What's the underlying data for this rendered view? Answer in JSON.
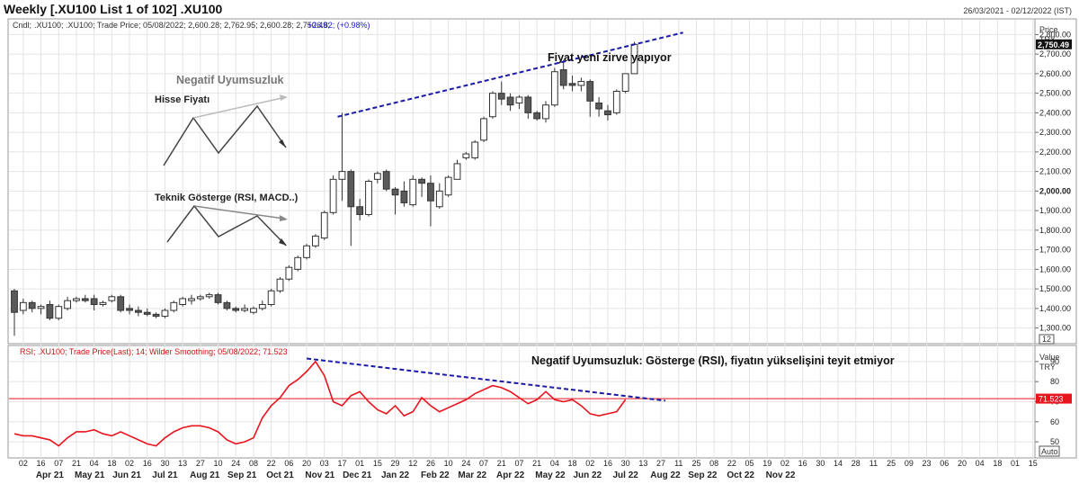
{
  "header": {
    "title": "Weekly [.XU100 List 1 of 102] .XU100",
    "date_range": "26/03/2021 - 02/12/2022 (IST)"
  },
  "price_panel": {
    "legend": ".XU100; .XU100; Trade Price; 05/08/2022; 2,600.28; 2,762.95; 2,600.28; 2,750.49;",
    "legend_change": "+26.82; (+0.98%)",
    "legend_prefix": "Cndl;",
    "axis_title": "Price",
    "axis_unit": "TRY",
    "last_value": "2,750.49",
    "bottom_badge": "12",
    "annotation": "Fiyat yeni zirve yapıyor"
  },
  "rsi_panel": {
    "legend": "RSI; .XU100; Trade Price(Last); 14; Wilder Smoothing; 05/08/2022; 71.523",
    "axis_title": "Value",
    "axis_unit": "TRY",
    "last_value": "71.523",
    "bottom_badge": "Auto",
    "annotation": "Negatif Uyumsuzluk: Gösterge (RSI), fiyatın yükselişini teyit etmiyor"
  },
  "inset": {
    "title": "Negatif Uyumsuzluk",
    "price_label": "Hisse Fiyatı",
    "indicator_label": "Teknik Gösterge (RSI, MACD..)"
  },
  "colors": {
    "bull": "#ffffff",
    "bear": "#5a5a5a",
    "rsi": "#e8141e",
    "trend": "#1a1aa8",
    "grid": "#e4e4e4",
    "refline": "#e8141e"
  },
  "chart_data": [
    {
      "type": "candlestick",
      "title": "Weekly [.XU100 List 1 of 102] .XU100",
      "ylabel": "Price TRY",
      "ylim": [
        1220,
        2880
      ],
      "yticks": [
        "1,300.00",
        "1,400.00",
        "1,500.00",
        "1,600.00",
        "1,700.00",
        "1,800.00",
        "1,900.00",
        "2,000.00",
        "2,100.00",
        "2,200.00",
        "2,300.00",
        "2,400.00",
        "2,500.00",
        "2,600.00",
        "2,700.00",
        "2,800.00"
      ],
      "week_labels": [
        "02",
        "16",
        "07",
        "21",
        "04",
        "18",
        "02",
        "16",
        "30",
        "13",
        "27",
        "10",
        "24",
        "08",
        "22",
        "06",
        "20",
        "03",
        "17",
        "01",
        "15",
        "29",
        "12",
        "26",
        "10",
        "24",
        "07",
        "21",
        "07",
        "21",
        "04",
        "18",
        "02",
        "16",
        "30",
        "13",
        "27",
        "11",
        "25",
        "08",
        "22",
        "05",
        "19",
        "02",
        "16",
        "30",
        "14",
        "28",
        "11",
        "25",
        "09",
        "23",
        "06",
        "20",
        "04",
        "18",
        "01",
        "15"
      ],
      "week_label_index": [
        1,
        3,
        5,
        7,
        9,
        11,
        13,
        15,
        17,
        19,
        21,
        23,
        25,
        27,
        29,
        31,
        33,
        35,
        37,
        39,
        41,
        43,
        45,
        47,
        49,
        51,
        53,
        55,
        57,
        59,
        61,
        63,
        65,
        67,
        69,
        71,
        73,
        75,
        77,
        79,
        81,
        83,
        85,
        87,
        89,
        91,
        93,
        95,
        97,
        99,
        101,
        103,
        105,
        107,
        109,
        111,
        113,
        115
      ],
      "month_labels": [
        "Apr 21",
        "May 21",
        "Jun 21",
        "Jul 21",
        "Aug 21",
        "Sep 21",
        "Oct 21",
        "Nov 21",
        "Dec 21",
        "Jan 22",
        "Feb 22",
        "Mar 22",
        "Apr 22",
        "May 22",
        "Jun 22",
        "Jul 22",
        "Aug 22",
        "Sep 22",
        "Oct 22",
        "Nov 22"
      ],
      "month_label_index": [
        4,
        8.5,
        12.7,
        17,
        21.5,
        25.7,
        30,
        34.5,
        38.7,
        43,
        47.5,
        51.7,
        56,
        60.5,
        64.7,
        69,
        73.5,
        77.7,
        82,
        86.5
      ],
      "candles": [
        {
          "o": 1490,
          "h": 1500,
          "l": 1260,
          "c": 1380
        },
        {
          "o": 1390,
          "h": 1450,
          "l": 1370,
          "c": 1430
        },
        {
          "o": 1430,
          "h": 1440,
          "l": 1380,
          "c": 1400
        },
        {
          "o": 1400,
          "h": 1420,
          "l": 1370,
          "c": 1410
        },
        {
          "o": 1420,
          "h": 1440,
          "l": 1340,
          "c": 1350
        },
        {
          "o": 1350,
          "h": 1420,
          "l": 1340,
          "c": 1410
        },
        {
          "o": 1400,
          "h": 1460,
          "l": 1390,
          "c": 1440
        },
        {
          "o": 1440,
          "h": 1460,
          "l": 1430,
          "c": 1450
        },
        {
          "o": 1450,
          "h": 1470,
          "l": 1430,
          "c": 1440
        },
        {
          "o": 1450,
          "h": 1470,
          "l": 1390,
          "c": 1420
        },
        {
          "o": 1420,
          "h": 1440,
          "l": 1410,
          "c": 1430
        },
        {
          "o": 1440,
          "h": 1470,
          "l": 1430,
          "c": 1460
        },
        {
          "o": 1460,
          "h": 1470,
          "l": 1380,
          "c": 1390
        },
        {
          "o": 1400,
          "h": 1420,
          "l": 1370,
          "c": 1390
        },
        {
          "o": 1390,
          "h": 1410,
          "l": 1360,
          "c": 1380
        },
        {
          "o": 1380,
          "h": 1400,
          "l": 1360,
          "c": 1370
        },
        {
          "o": 1370,
          "h": 1380,
          "l": 1350,
          "c": 1360
        },
        {
          "o": 1360,
          "h": 1400,
          "l": 1350,
          "c": 1390
        },
        {
          "o": 1390,
          "h": 1440,
          "l": 1380,
          "c": 1430
        },
        {
          "o": 1420,
          "h": 1460,
          "l": 1410,
          "c": 1450
        },
        {
          "o": 1440,
          "h": 1470,
          "l": 1420,
          "c": 1450
        },
        {
          "o": 1450,
          "h": 1470,
          "l": 1440,
          "c": 1460
        },
        {
          "o": 1460,
          "h": 1480,
          "l": 1450,
          "c": 1470
        },
        {
          "o": 1470,
          "h": 1480,
          "l": 1420,
          "c": 1430
        },
        {
          "o": 1430,
          "h": 1440,
          "l": 1390,
          "c": 1400
        },
        {
          "o": 1400,
          "h": 1410,
          "l": 1380,
          "c": 1390
        },
        {
          "o": 1390,
          "h": 1420,
          "l": 1380,
          "c": 1400
        },
        {
          "o": 1380,
          "h": 1410,
          "l": 1370,
          "c": 1400
        },
        {
          "o": 1400,
          "h": 1440,
          "l": 1390,
          "c": 1420
        },
        {
          "o": 1420,
          "h": 1500,
          "l": 1410,
          "c": 1490
        },
        {
          "o": 1490,
          "h": 1560,
          "l": 1480,
          "c": 1550
        },
        {
          "o": 1550,
          "h": 1620,
          "l": 1540,
          "c": 1610
        },
        {
          "o": 1600,
          "h": 1670,
          "l": 1590,
          "c": 1660
        },
        {
          "o": 1660,
          "h": 1730,
          "l": 1650,
          "c": 1720
        },
        {
          "o": 1720,
          "h": 1780,
          "l": 1710,
          "c": 1770
        },
        {
          "o": 1760,
          "h": 1900,
          "l": 1750,
          "c": 1890
        },
        {
          "o": 1890,
          "h": 2080,
          "l": 1880,
          "c": 2060
        },
        {
          "o": 2060,
          "h": 2400,
          "l": 1950,
          "c": 2100
        },
        {
          "o": 2100,
          "h": 2110,
          "l": 1720,
          "c": 1920
        },
        {
          "o": 1920,
          "h": 1960,
          "l": 1850,
          "c": 1880
        },
        {
          "o": 1880,
          "h": 2060,
          "l": 1870,
          "c": 2050
        },
        {
          "o": 2060,
          "h": 2100,
          "l": 2040,
          "c": 2090
        },
        {
          "o": 2100,
          "h": 2110,
          "l": 2000,
          "c": 2010
        },
        {
          "o": 2010,
          "h": 2020,
          "l": 1880,
          "c": 1980
        },
        {
          "o": 2000,
          "h": 2050,
          "l": 1920,
          "c": 1940
        },
        {
          "o": 1930,
          "h": 2080,
          "l": 1920,
          "c": 2060
        },
        {
          "o": 2060,
          "h": 2070,
          "l": 1970,
          "c": 2040
        },
        {
          "o": 2040,
          "h": 2080,
          "l": 1820,
          "c": 1950
        },
        {
          "o": 1920,
          "h": 2040,
          "l": 1910,
          "c": 2000
        },
        {
          "o": 1980,
          "h": 2080,
          "l": 1970,
          "c": 2070
        },
        {
          "o": 2060,
          "h": 2160,
          "l": 2060,
          "c": 2140
        },
        {
          "o": 2170,
          "h": 2200,
          "l": 2160,
          "c": 2190
        },
        {
          "o": 2170,
          "h": 2260,
          "l": 2160,
          "c": 2250
        },
        {
          "o": 2260,
          "h": 2380,
          "l": 2250,
          "c": 2370
        },
        {
          "o": 2380,
          "h": 2510,
          "l": 2370,
          "c": 2500
        },
        {
          "o": 2500,
          "h": 2560,
          "l": 2440,
          "c": 2470
        },
        {
          "o": 2480,
          "h": 2500,
          "l": 2410,
          "c": 2440
        },
        {
          "o": 2450,
          "h": 2490,
          "l": 2420,
          "c": 2480
        },
        {
          "o": 2480,
          "h": 2490,
          "l": 2370,
          "c": 2400
        },
        {
          "o": 2400,
          "h": 2410,
          "l": 2360,
          "c": 2370
        },
        {
          "o": 2370,
          "h": 2460,
          "l": 2350,
          "c": 2440
        },
        {
          "o": 2440,
          "h": 2630,
          "l": 2430,
          "c": 2610
        },
        {
          "o": 2620,
          "h": 2670,
          "l": 2520,
          "c": 2540
        },
        {
          "o": 2550,
          "h": 2590,
          "l": 2510,
          "c": 2540
        },
        {
          "o": 2540,
          "h": 2580,
          "l": 2510,
          "c": 2560
        },
        {
          "o": 2560,
          "h": 2570,
          "l": 2380,
          "c": 2460
        },
        {
          "o": 2450,
          "h": 2480,
          "l": 2380,
          "c": 2420
        },
        {
          "o": 2410,
          "h": 2440,
          "l": 2360,
          "c": 2390
        },
        {
          "o": 2400,
          "h": 2520,
          "l": 2390,
          "c": 2510
        },
        {
          "o": 2510,
          "h": 2600,
          "l": 2500,
          "c": 2600
        },
        {
          "o": 2600,
          "h": 2763,
          "l": 2600,
          "c": 2750
        }
      ]
    },
    {
      "type": "line",
      "title": "RSI; .XU100; Trade Price(Last); 14; Wilder Smoothing; 05/08/2022; 71.523",
      "ylabel": "Value TRY",
      "ylim": [
        42,
        98
      ],
      "yticks": [
        "50",
        "60",
        "70",
        "80",
        "90"
      ],
      "reference_line": 71.523,
      "series": [
        {
          "name": "RSI",
          "values": [
            54,
            53,
            53,
            52,
            51,
            48,
            52,
            55,
            55,
            56,
            54,
            53,
            55,
            53,
            51,
            49,
            48,
            52,
            55,
            57,
            58,
            58,
            57,
            55,
            51,
            49,
            50,
            52,
            62,
            68,
            72,
            78,
            81,
            85,
            90,
            83,
            70,
            68,
            73,
            75,
            70,
            66,
            64,
            68,
            63,
            65,
            72,
            68,
            65,
            67,
            69,
            71,
            74,
            76,
            78,
            77,
            75,
            72,
            69,
            71,
            75,
            71,
            70,
            71,
            68,
            64,
            63,
            64,
            65,
            71
          ]
        }
      ],
      "rsi_points_x_index": [
        0,
        1,
        2,
        3,
        4,
        5,
        6,
        7,
        8,
        9,
        10,
        11,
        12,
        13,
        14,
        15,
        16,
        17,
        18,
        19,
        20,
        21,
        22,
        23,
        24,
        25,
        26,
        27,
        28,
        29,
        30,
        31,
        32,
        33,
        34,
        35,
        36,
        37,
        38,
        39,
        40,
        41,
        42,
        43,
        44,
        45,
        46,
        47,
        48,
        49,
        50,
        51,
        52,
        53,
        54,
        55,
        56,
        57,
        58,
        59,
        60,
        61,
        62,
        63,
        64,
        65,
        66,
        67,
        68,
        69
      ]
    }
  ]
}
